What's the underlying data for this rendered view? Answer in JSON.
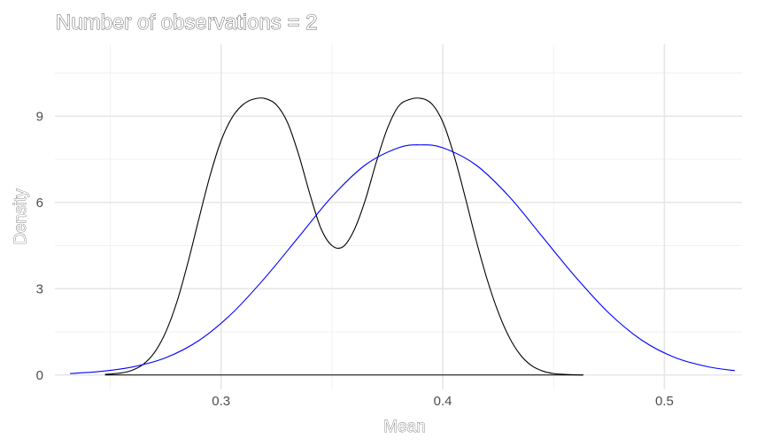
{
  "chart_data": {
    "type": "line",
    "title": "Number of observations = 2",
    "xlabel": "Mean",
    "ylabel": "Density",
    "xlim": [
      0.225,
      0.535
    ],
    "ylim": [
      -0.5,
      11.5
    ],
    "x_ticks": [
      0.3,
      0.4,
      0.5
    ],
    "x_tick_labels": [
      "0.3",
      "0.4",
      "0.5"
    ],
    "y_ticks": [
      0,
      3,
      6,
      9
    ],
    "y_tick_labels": [
      "0",
      "3",
      "6",
      "9"
    ],
    "grid": true,
    "legend": "none",
    "series": [
      {
        "color": "#000000",
        "x": [
          0.2476,
          0.255,
          0.26,
          0.265,
          0.27,
          0.275,
          0.28,
          0.285,
          0.29,
          0.295,
          0.3,
          0.305,
          0.31,
          0.315,
          0.32,
          0.325,
          0.33,
          0.335,
          0.34,
          0.345,
          0.35,
          0.355,
          0.36,
          0.365,
          0.37,
          0.375,
          0.38,
          0.385,
          0.39,
          0.395,
          0.4,
          0.405,
          0.41,
          0.415,
          0.42,
          0.425,
          0.43,
          0.435,
          0.44,
          0.445,
          0.45,
          0.455,
          0.46,
          0.4634
        ],
        "y": [
          0.02,
          0.07,
          0.17,
          0.38,
          0.79,
          1.49,
          2.53,
          3.9,
          5.44,
          6.93,
          8.15,
          8.96,
          9.41,
          9.6,
          9.61,
          9.39,
          8.77,
          7.66,
          6.3,
          5.1,
          4.5,
          4.46,
          5.04,
          6.07,
          7.4,
          8.57,
          9.34,
          9.58,
          9.62,
          9.43,
          8.8,
          7.66,
          6.22,
          4.7,
          3.33,
          2.19,
          1.31,
          0.7,
          0.33,
          0.14,
          0.05,
          0.02,
          0.005,
          0.0
        ]
      },
      {
        "color": "#0000ff",
        "x": [
          0.2318,
          0.245,
          0.26,
          0.275,
          0.29,
          0.305,
          0.32,
          0.335,
          0.35,
          0.365,
          0.38,
          0.39,
          0.4,
          0.415,
          0.43,
          0.445,
          0.46,
          0.475,
          0.49,
          0.505,
          0.52,
          0.5318
        ],
        "y": [
          0.05,
          0.12,
          0.28,
          0.6,
          1.2,
          2.15,
          3.4,
          4.8,
          6.2,
          7.3,
          7.9,
          8.0,
          7.9,
          7.3,
          6.2,
          4.8,
          3.4,
          2.15,
          1.2,
          0.6,
          0.28,
          0.15
        ]
      },
      {
        "color": "#000000",
        "x": [
          0.2476,
          0.4634
        ],
        "y": [
          0,
          0
        ]
      }
    ]
  }
}
